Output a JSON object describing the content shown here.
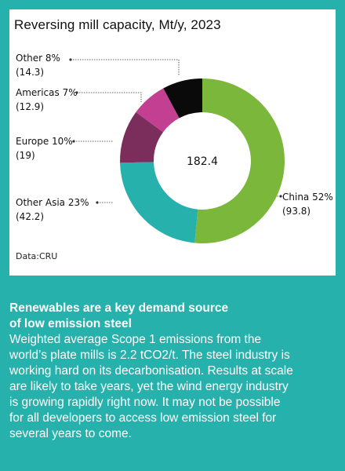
{
  "chart_data": {
    "type": "pie",
    "donut": true,
    "title": "Reversing mill capacity, Mt/y, 2023",
    "center_label": "182.4",
    "source": "Data:CRU",
    "slices": [
      {
        "name": "China",
        "percent_label": "52%",
        "value": 93.8,
        "value_label": "(93.8)",
        "color": "#7ab73b"
      },
      {
        "name": "Other Asia",
        "percent_label": "23%",
        "value": 42.2,
        "value_label": "(42.2)",
        "color": "#26b1ac"
      },
      {
        "name": "Europe",
        "percent_label": "10%",
        "value": 19,
        "value_label": "(19)",
        "color": "#7b2d5c"
      },
      {
        "name": "Americas",
        "percent_label": "7%",
        "value": 12.9,
        "value_label": "(12.9)",
        "color": "#c23f92"
      },
      {
        "name": "Other",
        "percent_label": "8%",
        "value": 14.3,
        "value_label": "(14.3)",
        "color": "#0a0a0a"
      }
    ]
  },
  "text": {
    "heading_line1": "Renewables are a key demand source",
    "heading_line2": "of low emission steel",
    "body_lines": [
      "Weighted average Scope 1 emissions from the",
      "world’s plate mills is 2.2 tCO2/t. The steel industry is",
      "working hard on its decarbonisation. Results at scale",
      "are likely to take years, yet the wind energy industry",
      "is growing rapidly right now. It may not be possible",
      "for all developers to access low emission steel for",
      "several years to come."
    ]
  },
  "colors": {
    "background": "#26b1ac",
    "card": "#ffffff"
  }
}
